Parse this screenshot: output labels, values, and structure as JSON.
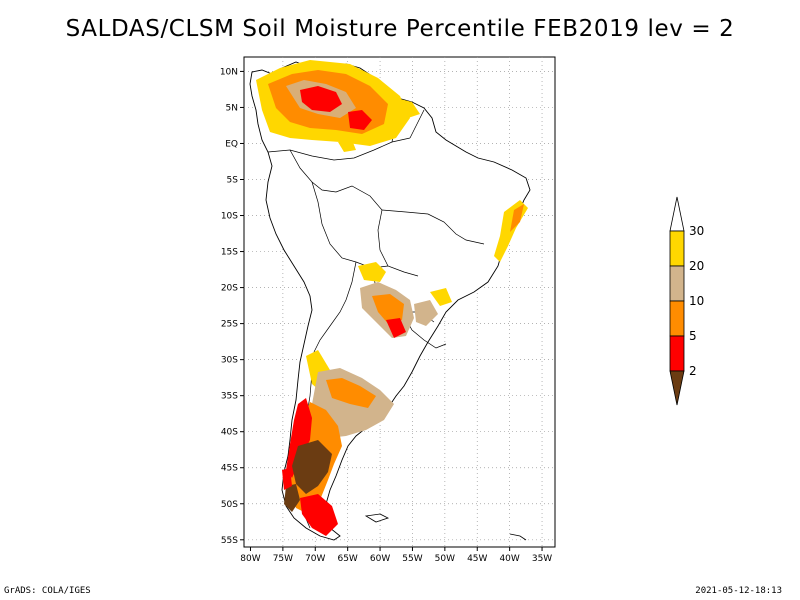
{
  "title": "SALDAS/CLSM Soil Moisture Percentile FEB2019 lev = 2",
  "footer": {
    "left": "GrADS: COLA/IGES",
    "right": "2021-05-12-18:13"
  },
  "map": {
    "lon_range": [
      -81,
      -33
    ],
    "lat_range": [
      -56,
      12
    ],
    "lon_ticks": [
      "80W",
      "75W",
      "70W",
      "65W",
      "60W",
      "55W",
      "50W",
      "45W",
      "40W",
      "35W"
    ],
    "lat_ticks": [
      "10N",
      "5N",
      "EQ",
      "5S",
      "10S",
      "15S",
      "20S",
      "25S",
      "30S",
      "35S",
      "40S",
      "45S",
      "50S",
      "55S"
    ]
  },
  "colorbar": {
    "labels": [
      "2",
      "5",
      "10",
      "20",
      "30"
    ],
    "colors": {
      "c0": "#6b3c12",
      "c1": "#ff0000",
      "c2": "#ff8c00",
      "c3": "#d2b48c",
      "c4": "#ffd700",
      "c5": "#ffffff"
    }
  }
}
